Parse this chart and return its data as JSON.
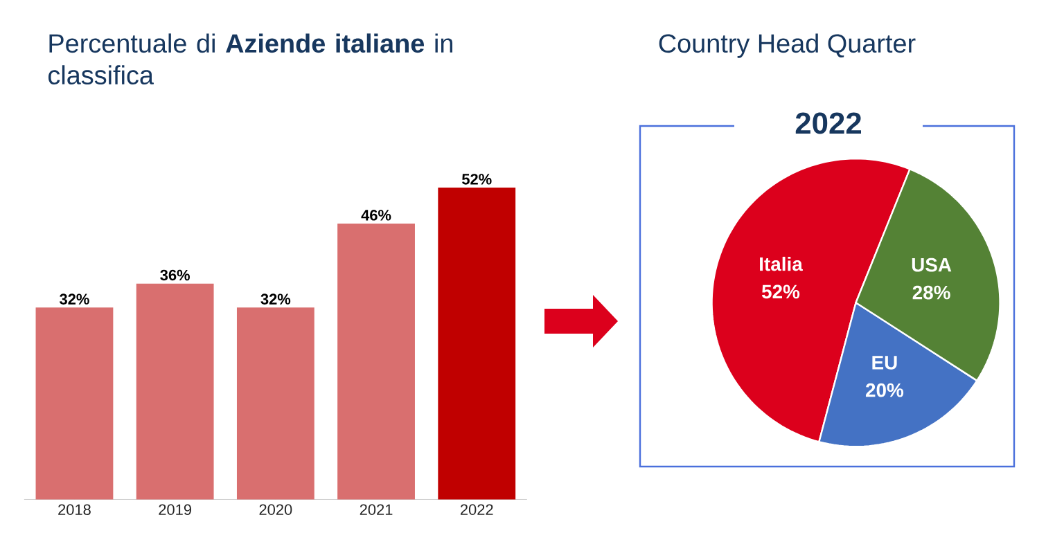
{
  "chart_data": [
    {
      "type": "bar",
      "title": "Percentuale di **Aziende italiane** in classifica",
      "categories": [
        "2018",
        "2019",
        "2020",
        "2021",
        "2022"
      ],
      "values": [
        32,
        36,
        32,
        46,
        52
      ],
      "colors": [
        "#d96f6f",
        "#d96f6f",
        "#d96f6f",
        "#d96f6f",
        "#c00000"
      ],
      "value_labels": [
        "32%",
        "36%",
        "32%",
        "46%",
        "52%"
      ]
    },
    {
      "type": "pie",
      "title": "Country Head Quarter",
      "subtitle": "2022",
      "categories": [
        "Italia",
        "EU",
        "USA"
      ],
      "values": [
        52,
        20,
        28
      ],
      "colors": [
        "#dc001c",
        "#4472c4",
        "#548235"
      ],
      "value_labels": [
        "52%",
        "20%",
        "28%"
      ]
    }
  ]
}
